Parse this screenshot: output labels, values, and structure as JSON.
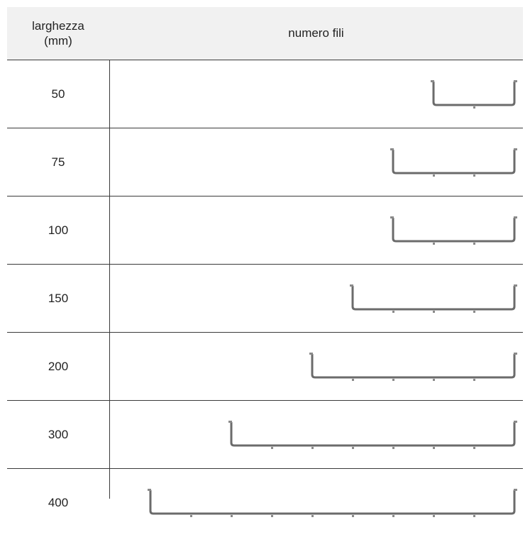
{
  "header": {
    "width_label_line1": "larghezza",
    "width_label_line2": "(mm)",
    "wires_label": "numero fili"
  },
  "rows": [
    {
      "width": "50",
      "wires": 1
    },
    {
      "width": "75",
      "wires": 2
    },
    {
      "width": "100",
      "wires": 2
    },
    {
      "width": "150",
      "wires": 3
    },
    {
      "width": "200",
      "wires": 4
    },
    {
      "width": "300",
      "wires": 6
    },
    {
      "width": "400",
      "wires": 8
    }
  ],
  "colors": {
    "tray": "#6b6b6b",
    "tray_end": "#8a8a8a",
    "rule": "#3a3a3a",
    "header_bg": "#f1f1f1"
  }
}
